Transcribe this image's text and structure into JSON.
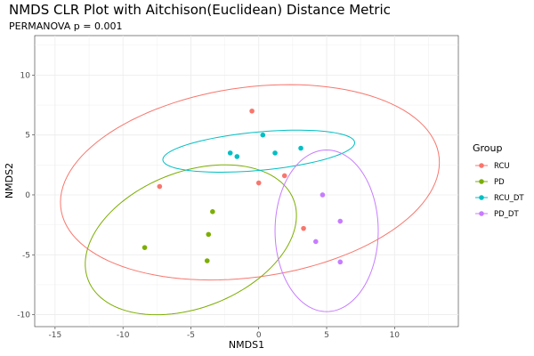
{
  "chart_data": {
    "type": "scatter",
    "title": "NMDS CLR Plot with Aitchison(Euclidean) Distance Metric",
    "subtitle": "PERMANOVA p = 0.001",
    "xlabel": "NMDS1",
    "ylabel": "NMDS2",
    "xlim": [
      -16.5,
      14.7
    ],
    "ylim": [
      -11.0,
      13.3
    ],
    "x_ticks": [
      -15,
      -10,
      -5,
      0,
      5,
      10
    ],
    "x_tick_labels": [
      "-15",
      "-10",
      "-5",
      "0",
      "5",
      "10"
    ],
    "y_ticks": [
      -10,
      -5,
      0,
      5,
      10
    ],
    "y_tick_labels": [
      "-10",
      "-5",
      "0",
      "5",
      "10"
    ],
    "grid": true,
    "legend_title": "Group",
    "legend_position": "right",
    "series": [
      {
        "name": "RCU",
        "color": "#F8766D",
        "points": [
          [
            -0.5,
            7.0
          ],
          [
            -7.3,
            0.7
          ],
          [
            0.0,
            1.0
          ],
          [
            1.9,
            1.6
          ],
          [
            3.3,
            -2.8
          ]
        ],
        "ellipse": {
          "cx": -0.65,
          "cy": 1.05,
          "rx": 14.1,
          "ry": 7.9,
          "angle_deg": 10
        }
      },
      {
        "name": "PD",
        "color": "#7CAE00",
        "points": [
          [
            -8.4,
            -4.4
          ],
          [
            -3.4,
            -1.4
          ],
          [
            -3.7,
            -3.3
          ],
          [
            -3.8,
            -5.5
          ]
        ],
        "ellipse": {
          "cx": -5.0,
          "cy": -3.75,
          "rx": 8.3,
          "ry": 5.55,
          "angle_deg": 28
        }
      },
      {
        "name": "RCU_DT",
        "color": "#00BFC4",
        "points": [
          [
            -2.1,
            3.5
          ],
          [
            -1.6,
            3.2
          ],
          [
            0.3,
            5.0
          ],
          [
            1.2,
            3.5
          ],
          [
            3.1,
            3.9
          ]
        ],
        "ellipse": {
          "cx": 0.0,
          "cy": 3.65,
          "rx": 7.1,
          "ry": 1.6,
          "angle_deg": 6
        }
      },
      {
        "name": "PD_DT",
        "color": "#C77CFF",
        "points": [
          [
            4.7,
            0.0
          ],
          [
            6.0,
            -2.2
          ],
          [
            4.2,
            -3.9
          ],
          [
            6.0,
            -5.6
          ]
        ],
        "ellipse": {
          "cx": 5.0,
          "cy": -3.0,
          "rx": 3.8,
          "ry": 6.75,
          "angle_deg": 0
        }
      }
    ]
  }
}
